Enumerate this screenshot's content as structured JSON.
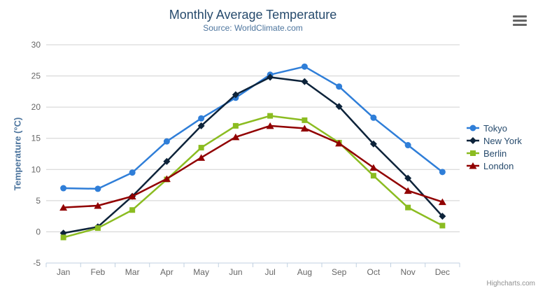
{
  "chart": {
    "title": "Monthly Average Temperature",
    "subtitle": "Source: WorldClimate.com"
  },
  "toolbar": {
    "menu_icon": "hamburger-menu"
  },
  "credits": {
    "label": "Highcharts.com"
  },
  "chart_data": {
    "type": "line",
    "title": "Monthly Average Temperature",
    "subtitle": "Source: WorldClimate.com",
    "xlabel": "",
    "ylabel": "Temperature (°C)",
    "ylim": [
      -5,
      30
    ],
    "ytick_interval": 5,
    "yticks": [
      -5,
      0,
      5,
      10,
      15,
      20,
      25,
      30
    ],
    "grid": true,
    "legend_position": "right",
    "categories": [
      "Jan",
      "Feb",
      "Mar",
      "Apr",
      "May",
      "Jun",
      "Jul",
      "Aug",
      "Sep",
      "Oct",
      "Nov",
      "Dec"
    ],
    "series": [
      {
        "name": "Tokyo",
        "color": "#2f7ed8",
        "marker": "circle",
        "values": [
          7.0,
          6.9,
          9.5,
          14.5,
          18.2,
          21.5,
          25.2,
          26.5,
          23.3,
          18.3,
          13.9,
          9.6
        ]
      },
      {
        "name": "New York",
        "color": "#0d233a",
        "marker": "diamond",
        "values": [
          -0.2,
          0.8,
          5.7,
          11.3,
          17.0,
          22.0,
          24.8,
          24.1,
          20.1,
          14.1,
          8.6,
          2.5
        ]
      },
      {
        "name": "Berlin",
        "color": "#8bbc21",
        "marker": "square",
        "values": [
          -0.9,
          0.6,
          3.5,
          8.4,
          13.5,
          17.0,
          18.6,
          17.9,
          14.3,
          9.0,
          3.9,
          1.0
        ]
      },
      {
        "name": "London",
        "color": "#910000",
        "marker": "triangle",
        "values": [
          3.9,
          4.2,
          5.7,
          8.5,
          11.9,
          15.2,
          17.0,
          16.6,
          14.2,
          10.3,
          6.6,
          4.8
        ]
      }
    ],
    "colors": {
      "grid_line": "#d0d0d0",
      "axis_line": "#c0d0e0",
      "tick": "#c0d0e0",
      "axis_label": "#666666",
      "title": "#274b6d",
      "subtitle": "#4d759e",
      "axis_title": "#4d759e",
      "legend_text": "#274b6d",
      "credits": "#909090",
      "menu_icon": "#666666"
    }
  }
}
